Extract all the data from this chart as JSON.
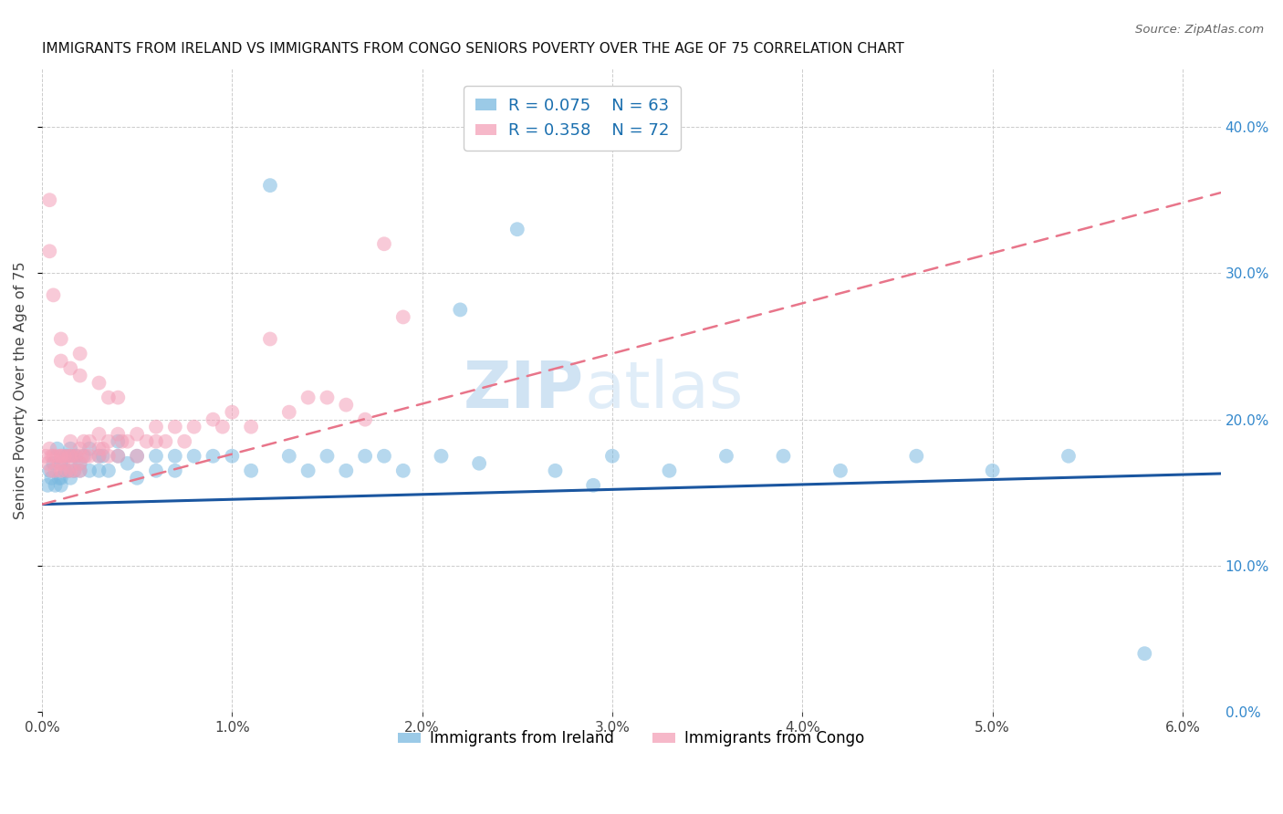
{
  "title": "IMMIGRANTS FROM IRELAND VS IMMIGRANTS FROM CONGO SENIORS POVERTY OVER THE AGE OF 75 CORRELATION CHART",
  "source": "Source: ZipAtlas.com",
  "xlabel_ireland": "Immigrants from Ireland",
  "xlabel_congo": "Immigrants from Congo",
  "ylabel": "Seniors Poverty Over the Age of 75",
  "xlim": [
    0.0,
    0.062
  ],
  "ylim": [
    0.0,
    0.44
  ],
  "yticks": [
    0.0,
    0.1,
    0.2,
    0.3,
    0.4
  ],
  "ireland_color": "#7ab9e0",
  "congo_color": "#f4a0b8",
  "ireland_line_color": "#1a56a0",
  "congo_line_color": "#e8758a",
  "ireland_R": 0.075,
  "ireland_N": 63,
  "congo_R": 0.358,
  "congo_N": 72,
  "watermark_zip": "ZIP",
  "watermark_atlas": "atlas",
  "ireland_x": [
    0.0003,
    0.0004,
    0.0005,
    0.0006,
    0.0007,
    0.0008,
    0.0009,
    0.001,
    0.001,
    0.001,
    0.0012,
    0.0013,
    0.0014,
    0.0015,
    0.0015,
    0.0016,
    0.0017,
    0.0018,
    0.002,
    0.002,
    0.0022,
    0.0025,
    0.0025,
    0.003,
    0.003,
    0.0032,
    0.0035,
    0.004,
    0.004,
    0.0045,
    0.005,
    0.005,
    0.006,
    0.006,
    0.007,
    0.007,
    0.008,
    0.009,
    0.01,
    0.011,
    0.012,
    0.013,
    0.014,
    0.015,
    0.016,
    0.017,
    0.018,
    0.019,
    0.021,
    0.023,
    0.025,
    0.027,
    0.03,
    0.033,
    0.036,
    0.039,
    0.042,
    0.046,
    0.05,
    0.054,
    0.022,
    0.029,
    0.058
  ],
  "ireland_y": [
    0.155,
    0.165,
    0.16,
    0.17,
    0.155,
    0.18,
    0.16,
    0.17,
    0.16,
    0.155,
    0.165,
    0.175,
    0.165,
    0.18,
    0.16,
    0.175,
    0.165,
    0.175,
    0.17,
    0.165,
    0.175,
    0.18,
    0.165,
    0.175,
    0.165,
    0.175,
    0.165,
    0.185,
    0.175,
    0.17,
    0.175,
    0.16,
    0.175,
    0.165,
    0.175,
    0.165,
    0.175,
    0.175,
    0.175,
    0.165,
    0.36,
    0.175,
    0.165,
    0.175,
    0.165,
    0.175,
    0.175,
    0.165,
    0.175,
    0.17,
    0.33,
    0.165,
    0.175,
    0.165,
    0.175,
    0.175,
    0.165,
    0.175,
    0.165,
    0.175,
    0.275,
    0.155,
    0.04
  ],
  "congo_x": [
    0.0002,
    0.0003,
    0.0004,
    0.0005,
    0.0005,
    0.0006,
    0.0007,
    0.0008,
    0.0009,
    0.001,
    0.001,
    0.001,
    0.0011,
    0.0012,
    0.0013,
    0.0014,
    0.0015,
    0.0015,
    0.0015,
    0.0016,
    0.0017,
    0.0018,
    0.002,
    0.002,
    0.002,
    0.0021,
    0.0022,
    0.0023,
    0.0025,
    0.0025,
    0.003,
    0.003,
    0.003,
    0.0032,
    0.0035,
    0.0035,
    0.004,
    0.004,
    0.0042,
    0.0045,
    0.005,
    0.005,
    0.0055,
    0.006,
    0.006,
    0.0065,
    0.007,
    0.0075,
    0.008,
    0.009,
    0.0095,
    0.01,
    0.011,
    0.012,
    0.013,
    0.014,
    0.015,
    0.016,
    0.017,
    0.018,
    0.0004,
    0.0004,
    0.0006,
    0.001,
    0.001,
    0.0015,
    0.002,
    0.002,
    0.003,
    0.0035,
    0.004,
    0.019
  ],
  "congo_y": [
    0.175,
    0.17,
    0.18,
    0.165,
    0.175,
    0.175,
    0.165,
    0.175,
    0.17,
    0.175,
    0.165,
    0.175,
    0.17,
    0.175,
    0.165,
    0.175,
    0.185,
    0.175,
    0.165,
    0.175,
    0.165,
    0.175,
    0.18,
    0.17,
    0.165,
    0.175,
    0.185,
    0.175,
    0.185,
    0.175,
    0.19,
    0.18,
    0.175,
    0.18,
    0.185,
    0.175,
    0.19,
    0.175,
    0.185,
    0.185,
    0.19,
    0.175,
    0.185,
    0.195,
    0.185,
    0.185,
    0.195,
    0.185,
    0.195,
    0.2,
    0.195,
    0.205,
    0.195,
    0.255,
    0.205,
    0.215,
    0.215,
    0.21,
    0.2,
    0.32,
    0.35,
    0.315,
    0.285,
    0.255,
    0.24,
    0.235,
    0.23,
    0.245,
    0.225,
    0.215,
    0.215,
    0.27
  ]
}
